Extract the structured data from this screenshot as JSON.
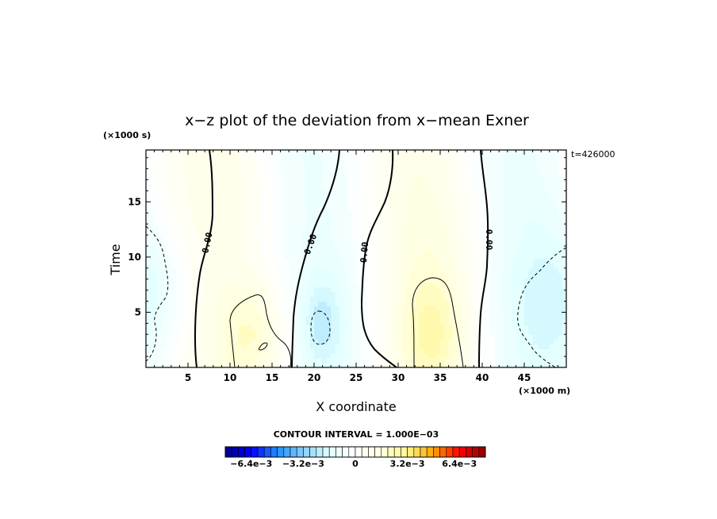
{
  "chart_data": {
    "type": "heatmap",
    "title": "x−z plot of the deviation from x−mean Exner",
    "xlabel": "X coordinate",
    "ylabel": "Time",
    "x_unit": "(×1000 m)",
    "y_unit": "(×1000 s)",
    "time_label": "t=426000",
    "contour_interval_label": "CONTOUR INTERVAL = 1.000E−03",
    "xlim": [
      0,
      50
    ],
    "ylim": [
      0,
      19.7
    ],
    "xticks": [
      5,
      10,
      15,
      20,
      25,
      30,
      35,
      40,
      45
    ],
    "yticks": [
      5,
      10,
      15
    ],
    "zero_contour_labels": [
      "0.00",
      "0.00",
      "0.00",
      "0.00"
    ],
    "colorbar": {
      "min": -0.008,
      "max": 0.008,
      "n_bins": 40,
      "tick_values": [
        -0.0064,
        -0.0032,
        0,
        0.0032,
        0.0064
      ],
      "tick_labels": [
        "−6.4e−3",
        "−3.2e−3",
        "0",
        "3.2e−3",
        "6.4e−3"
      ],
      "stops": [
        "#00008b",
        "#0000ff",
        "#1e90ff",
        "#87cefa",
        "#e0ffff",
        "#ffffff",
        "#ffffe0",
        "#fff68f",
        "#ffa500",
        "#ff0000",
        "#8b0000"
      ]
    }
  }
}
